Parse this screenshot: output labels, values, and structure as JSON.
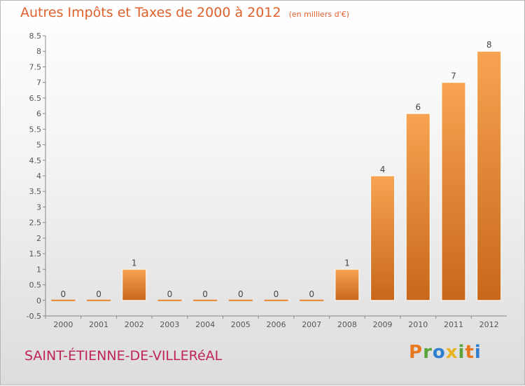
{
  "chart_data": {
    "type": "bar",
    "title": "Autres Impôts et Taxes de 2000 à 2012",
    "subtitle": "(en milliers d'€)",
    "categories": [
      "2000",
      "2001",
      "2002",
      "2003",
      "2004",
      "2005",
      "2006",
      "2007",
      "2008",
      "2009",
      "2010",
      "2011",
      "2012"
    ],
    "values": [
      0,
      0,
      1,
      0,
      0,
      0,
      0,
      0,
      1,
      4,
      6,
      7,
      8
    ],
    "data_labels": [
      "0",
      "0",
      "1",
      "0",
      "0",
      "0",
      "0",
      "0",
      "1",
      "4",
      "6",
      "7",
      "8"
    ],
    "y_ticks": [
      "-0.5",
      "0",
      "0.5",
      "1",
      "1.5",
      "2",
      "2.5",
      "3",
      "3.5",
      "4",
      "4.5",
      "5",
      "5.5",
      "6",
      "6.5",
      "7",
      "7.5",
      "8",
      "8.5"
    ],
    "ylim": [
      -0.5,
      8.5
    ],
    "xlabel": "",
    "ylabel": "",
    "grid": false,
    "colors": {
      "bar": "#e8842e",
      "title": "#e0602c",
      "commune": "#c0245c"
    }
  },
  "footer": {
    "commune": "SAINT-ÉTIENNE-DE-VILLERéAL",
    "logo_letters": [
      "P",
      "r",
      "o",
      "x",
      "i",
      "t",
      "i"
    ],
    "logo_colors": [
      "#e8781e",
      "#5aa63c",
      "#2f7fd0",
      "#e8b21e",
      "#5aa63c",
      "#e8781e",
      "#2f7fd0"
    ]
  }
}
